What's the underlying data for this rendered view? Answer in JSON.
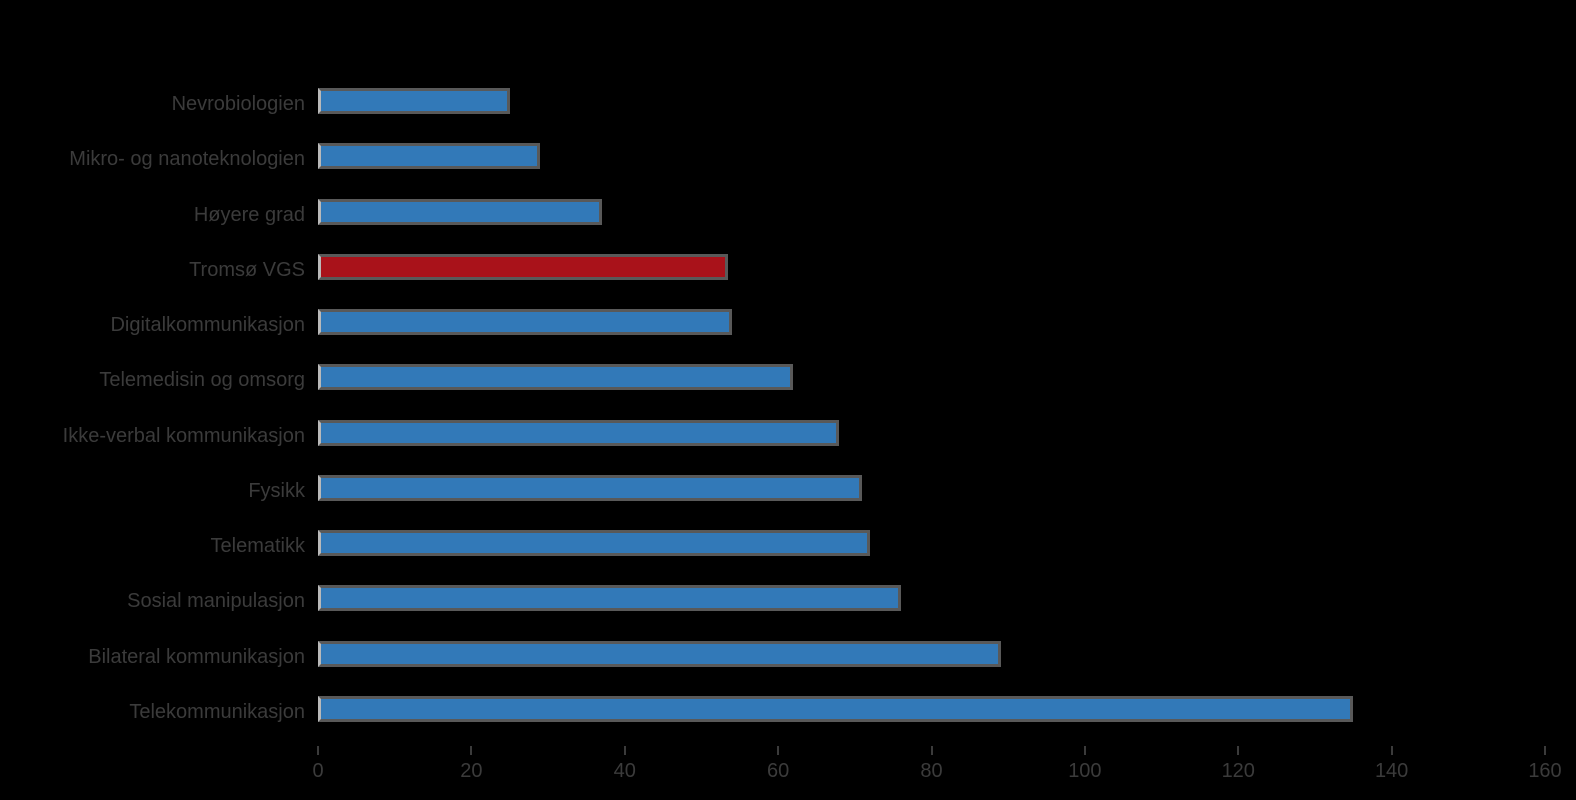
{
  "chart_data": {
    "type": "bar",
    "orientation": "horizontal",
    "title": "",
    "xlabel": "",
    "ylabel": "",
    "categories": [
      "Nevrobiologien",
      "Mikro- og nanoteknologien",
      "Høyere grad",
      "Tromsø VGS",
      "Digitalkommunikasjon",
      "Telemedisin og omsorg",
      "Ikke-verbal kommunikasjon",
      "Fysikk",
      "Telematikk",
      "Sosial manipulasjon",
      "Bilateral kommunikasjon",
      "Telekommunikasjon"
    ],
    "values": [
      25,
      29,
      37,
      53.5,
      54,
      62,
      68,
      71,
      72,
      76,
      89,
      135
    ],
    "highlight_index": 3,
    "xlim": [
      0,
      160
    ],
    "xticks": [
      0,
      20,
      40,
      60,
      80,
      100,
      120,
      140,
      160
    ],
    "grid": false,
    "legend": null,
    "colors": {
      "bar_default": "#3279b8",
      "bar_highlight": "#a9121a",
      "bar_edge": "#595959",
      "bar_edge_left": "#b9b9b9",
      "text": "#3b3b3b",
      "background": "#000000"
    }
  }
}
